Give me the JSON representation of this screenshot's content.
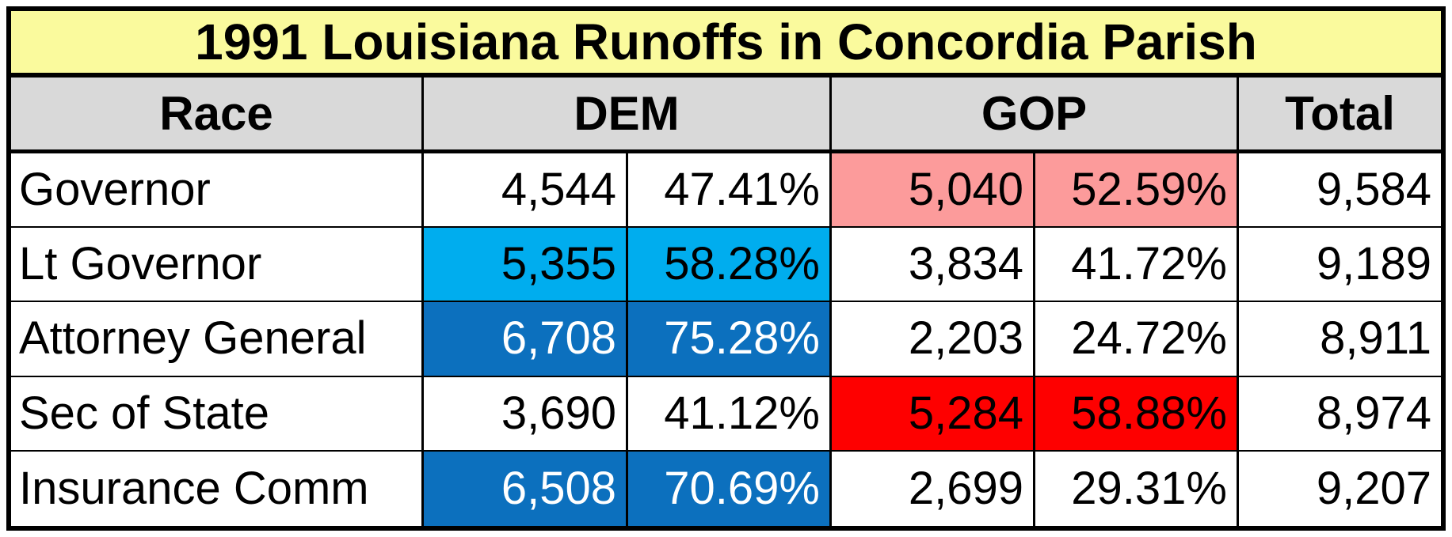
{
  "title": "1991 Louisiana Runoffs in Concordia Parish",
  "header": {
    "race": "Race",
    "dem": "DEM",
    "gop": "GOP",
    "total": "Total"
  },
  "rows": [
    {
      "race": "Governor",
      "dem_votes": "4,544",
      "dem_pct": "47.41%",
      "gop_votes": "5,040",
      "gop_pct": "52.59%",
      "total": "9,584",
      "dem_highlight": "none",
      "gop_highlight": "light"
    },
    {
      "race": "Lt Governor",
      "dem_votes": "5,355",
      "dem_pct": "58.28%",
      "gop_votes": "3,834",
      "gop_pct": "41.72%",
      "total": "9,189",
      "dem_highlight": "light",
      "gop_highlight": "none"
    },
    {
      "race": "Attorney General",
      "dem_votes": "6,708",
      "dem_pct": "75.28%",
      "gop_votes": "2,203",
      "gop_pct": "24.72%",
      "total": "8,911",
      "dem_highlight": "strong",
      "gop_highlight": "none"
    },
    {
      "race": "Sec of State",
      "dem_votes": "3,690",
      "dem_pct": "41.12%",
      "gop_votes": "5,284",
      "gop_pct": "58.88%",
      "total": "8,974",
      "dem_highlight": "none",
      "gop_highlight": "strong"
    },
    {
      "race": "Insurance Comm",
      "dem_votes": "6,508",
      "dem_pct": "70.69%",
      "gop_votes": "2,699",
      "gop_pct": "29.31%",
      "total": "9,207",
      "dem_highlight": "strong",
      "gop_highlight": "none"
    }
  ],
  "colors": {
    "title_bg": "#fafa9d",
    "header_bg": "#d9d9d9",
    "border": "#000000",
    "dem_light": "#00adee",
    "dem_strong": "#0c70be",
    "gop_light": "#fc9b9b",
    "gop_strong": "#fe0000",
    "strong_text": "#ffffff"
  },
  "chart_data": {
    "type": "table",
    "title": "1991 Louisiana Runoffs in Concordia Parish",
    "columns": [
      "Race",
      "DEM votes",
      "DEM %",
      "GOP votes",
      "GOP %",
      "Total"
    ],
    "rows": [
      [
        "Governor",
        4544,
        47.41,
        5040,
        52.59,
        9584
      ],
      [
        "Lt Governor",
        5355,
        58.28,
        3834,
        41.72,
        9189
      ],
      [
        "Attorney General",
        6708,
        75.28,
        2203,
        24.72,
        8911
      ],
      [
        "Sec of State",
        3690,
        41.12,
        5284,
        58.88,
        8974
      ],
      [
        "Insurance Comm",
        6508,
        70.69,
        2699,
        29.31,
        9207
      ]
    ],
    "cell_highlights": [
      {
        "row": "Governor",
        "party": "GOP",
        "color": "#fc9b9b"
      },
      {
        "row": "Lt Governor",
        "party": "DEM",
        "color": "#00adee"
      },
      {
        "row": "Attorney General",
        "party": "DEM",
        "color": "#0c70be"
      },
      {
        "row": "Sec of State",
        "party": "GOP",
        "color": "#fe0000"
      },
      {
        "row": "Insurance Comm",
        "party": "DEM",
        "color": "#0c70be"
      }
    ],
    "layout_hints": {
      "title_background": "#fafa9d",
      "header_background": "#d9d9d9",
      "numbers_right_aligned": true,
      "grid": "black borders, thick outer frame"
    }
  }
}
